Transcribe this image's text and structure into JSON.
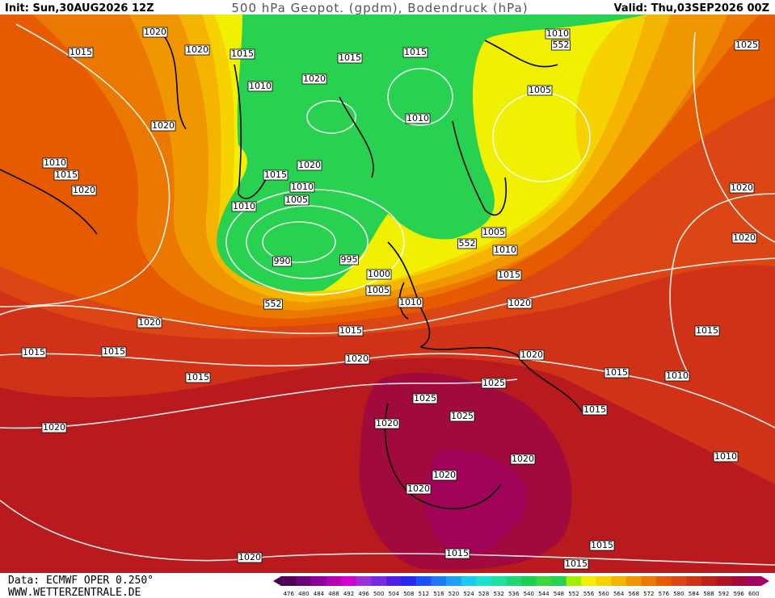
{
  "header": {
    "init": "Init: Sun,30AUG2026 12Z",
    "title": "500 hPa Geopot. (gpdm), Bodendruck (hPa)",
    "valid": "Valid: Thu,03SEP2026 00Z"
  },
  "footer": {
    "data": "Data: ECMWF OPER 0.250°",
    "url": "WWW.WETTERZENTRALE.DE"
  },
  "colorbar": {
    "values": [
      476,
      480,
      484,
      488,
      492,
      496,
      500,
      504,
      508,
      512,
      516,
      520,
      524,
      528,
      532,
      536,
      540,
      544,
      548,
      552,
      556,
      560,
      564,
      568,
      572,
      576,
      580,
      584,
      588,
      592,
      596,
      600
    ],
    "colors": [
      "#4c0055",
      "#6a0078",
      "#8c009a",
      "#b400b4",
      "#d200d2",
      "#9b30d8",
      "#7a2ae0",
      "#5020e8",
      "#2828f0",
      "#1e50f5",
      "#1e78f5",
      "#1ea0f5",
      "#1ec8f0",
      "#1ee0d0",
      "#1ee0a0",
      "#1ed878",
      "#1ed050",
      "#3cd83c",
      "#28d250",
      "#a0f000",
      "#f0f000",
      "#f5d200",
      "#f5b400",
      "#f09600",
      "#eb7800",
      "#e65a00",
      "#dc4614",
      "#d03218",
      "#c0201c",
      "#b01420",
      "#a00a3c",
      "#a00064"
    ]
  },
  "isobar_labels": [
    "1020",
    "1020",
    "1015",
    "1015",
    "1015",
    "1015",
    "1010",
    "552",
    "1025",
    "1020",
    "1010",
    "1005",
    "1010",
    "1020",
    "1010",
    "1015",
    "1020",
    "1015",
    "1010",
    "1020",
    "1005",
    "1010",
    "1020",
    "1005",
    "1020",
    "552",
    "1010",
    "990",
    "995",
    "1000",
    "1015",
    "1005",
    "1010",
    "552",
    "1020",
    "1020",
    "1015",
    "1015",
    "1015",
    "1015",
    "1020",
    "1020",
    "1015",
    "1015",
    "1010",
    "1025",
    "1025",
    "1025",
    "1015",
    "1020",
    "1020",
    "1010",
    "1020",
    "1020",
    "1020",
    "1015",
    "1015",
    "1020",
    "1015"
  ]
}
